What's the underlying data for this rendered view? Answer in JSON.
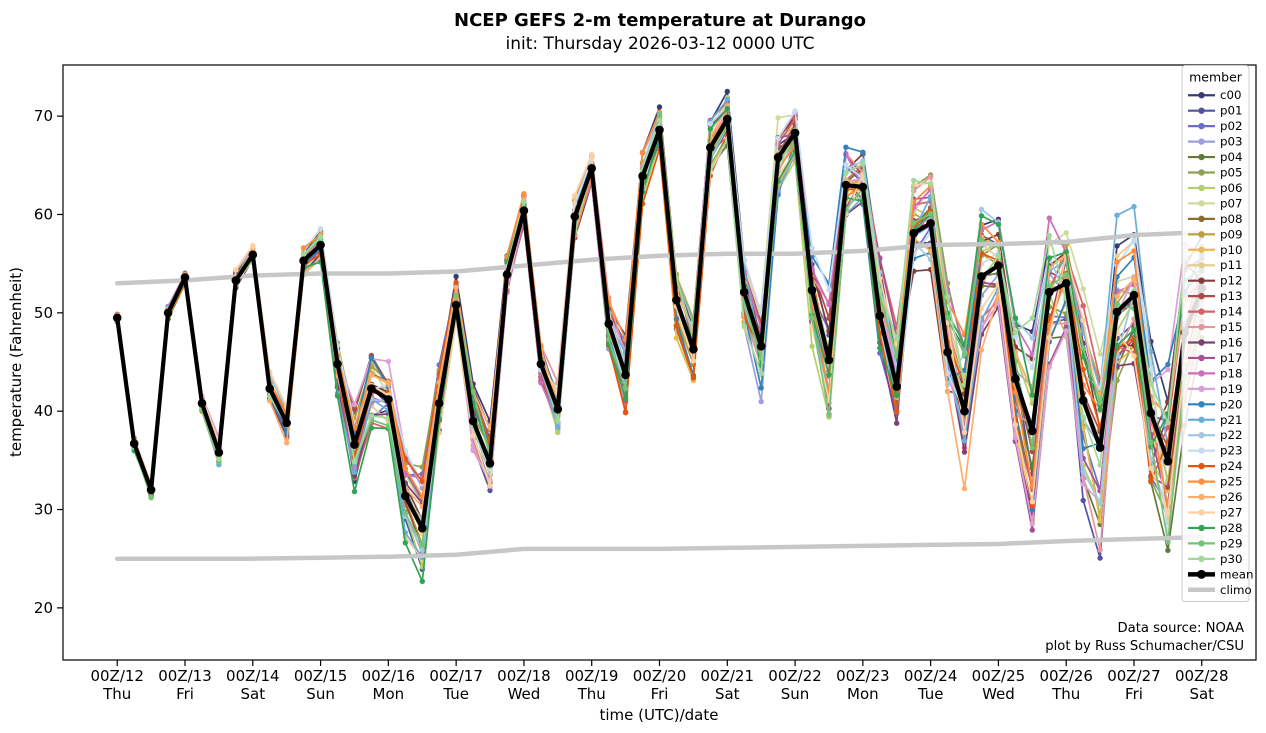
{
  "title": "NCEP GEFS 2-m temperature at Durango",
  "subtitle": "init: Thursday 2026-03-12 0000 UTC",
  "annotation": {
    "line1": "Data source: NOAA",
    "line2": "plot by Russ Schumacher/CSU"
  },
  "legend": {
    "title": "member",
    "mean_label": "mean",
    "climo_label": "climo"
  },
  "chart_data": {
    "type": "line",
    "title": "NCEP GEFS 2-m temperature at Durango",
    "subtitle": "init: Thursday 2026-03-12 0000 UTC",
    "xlabel": "time (UTC)/date",
    "ylabel": "temperature (Fahrenheit)",
    "ylim": [
      14.7,
      75.2
    ],
    "yticks": [
      20,
      30,
      40,
      50,
      60,
      70
    ],
    "grid": false,
    "legend_position": "upper right",
    "time_step_hours": 6,
    "x_ticks": [
      {
        "label": "00Z/12",
        "day": "Thu"
      },
      {
        "label": "00Z/13",
        "day": "Fri"
      },
      {
        "label": "00Z/14",
        "day": "Sat"
      },
      {
        "label": "00Z/15",
        "day": "Sun"
      },
      {
        "label": "00Z/16",
        "day": "Mon"
      },
      {
        "label": "00Z/17",
        "day": "Tue"
      },
      {
        "label": "00Z/18",
        "day": "Wed"
      },
      {
        "label": "00Z/19",
        "day": "Thu"
      },
      {
        "label": "00Z/20",
        "day": "Fri"
      },
      {
        "label": "00Z/21",
        "day": "Sat"
      },
      {
        "label": "00Z/22",
        "day": "Sun"
      },
      {
        "label": "00Z/23",
        "day": "Mon"
      },
      {
        "label": "00Z/24",
        "day": "Tue"
      },
      {
        "label": "00Z/25",
        "day": "Wed"
      },
      {
        "label": "00Z/26",
        "day": "Thu"
      },
      {
        "label": "00Z/27",
        "day": "Fri"
      },
      {
        "label": "00Z/28",
        "day": "Sat"
      }
    ],
    "mean_color": "#000000",
    "climo_color": "#c7c7c7",
    "mean": [
      49.5,
      36.7,
      32.0,
      50.0,
      53.6,
      40.8,
      35.8,
      53.3,
      55.9,
      42.3,
      38.8,
      55.3,
      56.9,
      44.8,
      36.6,
      42.3,
      41.2,
      31.4,
      28.1,
      40.8,
      50.8,
      39.0,
      34.7,
      53.9,
      60.4,
      44.8,
      40.2,
      59.8,
      64.7,
      48.9,
      43.7,
      63.9,
      68.6,
      51.3,
      46.3,
      66.8,
      69.7,
      52.1,
      46.6,
      65.8,
      68.3,
      52.3,
      45.2,
      63.0,
      62.8,
      49.7,
      42.5,
      58.1,
      59.1,
      46.0,
      40.0,
      53.7,
      54.8,
      43.3,
      38.0,
      52.1,
      53.0,
      41.1,
      36.3,
      50.1,
      51.8,
      39.8,
      34.9,
      48.0,
      52.5
    ],
    "climo_upper_daily": [
      53.0,
      53.3,
      53.8,
      54.0,
      54.0,
      54.2,
      54.8,
      55.4,
      55.8,
      56.0,
      56.0,
      56.3,
      56.9,
      57.0,
      57.2,
      57.9,
      58.2
    ],
    "climo_lower_daily": [
      25.0,
      25.0,
      25.0,
      25.1,
      25.2,
      25.4,
      26.0,
      26.0,
      26.0,
      26.1,
      26.2,
      26.3,
      26.4,
      26.5,
      26.8,
      27.0,
      27.2
    ],
    "ensemble_spread_halfwidth_daily": [
      0.6,
      0.9,
      1.2,
      2.2,
      5.0,
      3.5,
      2.2,
      2.4,
      3.0,
      3.4,
      4.5,
      5.5,
      6.5,
      7.5,
      9.0,
      10.0,
      10.5
    ],
    "ensemble_extremes": {
      "max_value": 72.5,
      "min_value": 17.5
    },
    "members": [
      {
        "name": "c00",
        "color": "#393b79"
      },
      {
        "name": "p01",
        "color": "#5254a3"
      },
      {
        "name": "p02",
        "color": "#6b6ecf"
      },
      {
        "name": "p03",
        "color": "#9c9ede"
      },
      {
        "name": "p04",
        "color": "#637939"
      },
      {
        "name": "p05",
        "color": "#8ca252"
      },
      {
        "name": "p06",
        "color": "#b5cf6b"
      },
      {
        "name": "p07",
        "color": "#cedb9c"
      },
      {
        "name": "p08",
        "color": "#8c6d31"
      },
      {
        "name": "p09",
        "color": "#bd9e39"
      },
      {
        "name": "p10",
        "color": "#e7ba52"
      },
      {
        "name": "p11",
        "color": "#e7cb94"
      },
      {
        "name": "p12",
        "color": "#843c39"
      },
      {
        "name": "p13",
        "color": "#ad494a"
      },
      {
        "name": "p14",
        "color": "#d6616b"
      },
      {
        "name": "p15",
        "color": "#e7969c"
      },
      {
        "name": "p16",
        "color": "#7b4173"
      },
      {
        "name": "p17",
        "color": "#a55194"
      },
      {
        "name": "p18",
        "color": "#ce6dbd"
      },
      {
        "name": "p19",
        "color": "#de9ed6"
      },
      {
        "name": "p20",
        "color": "#3182bd"
      },
      {
        "name": "p21",
        "color": "#6baed6"
      },
      {
        "name": "p22",
        "color": "#9ecae1"
      },
      {
        "name": "p23",
        "color": "#c6dbef"
      },
      {
        "name": "p24",
        "color": "#e6550d"
      },
      {
        "name": "p25",
        "color": "#fd8d3c"
      },
      {
        "name": "p26",
        "color": "#fdae6b"
      },
      {
        "name": "p27",
        "color": "#fdd0a2"
      },
      {
        "name": "p28",
        "color": "#31a354"
      },
      {
        "name": "p29",
        "color": "#74c476"
      },
      {
        "name": "p30",
        "color": "#a1d99b"
      }
    ]
  }
}
